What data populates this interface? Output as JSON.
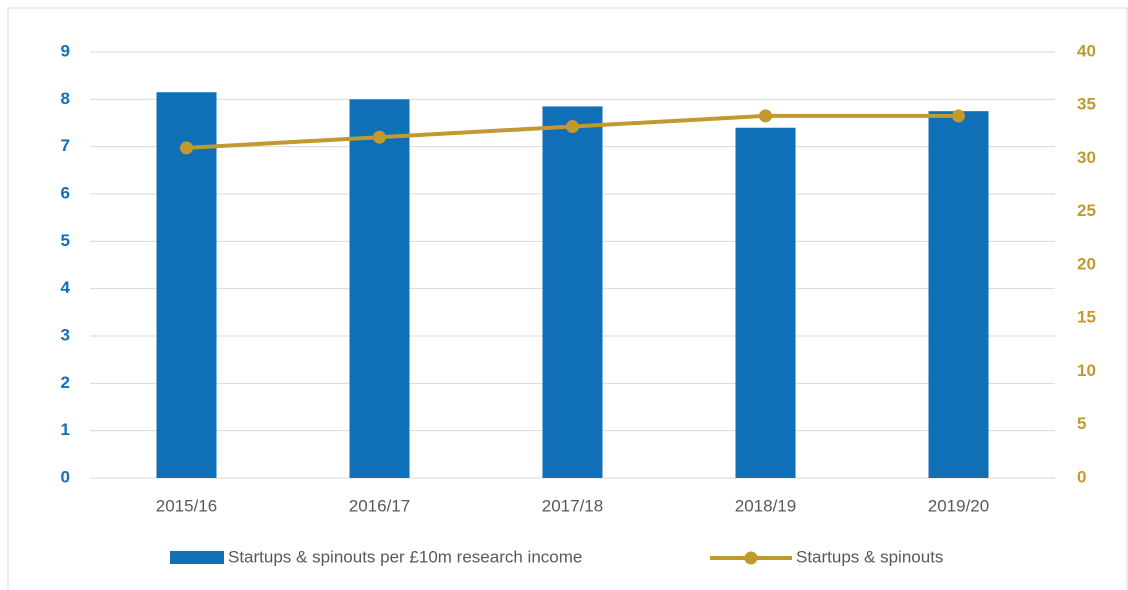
{
  "chart_data": {
    "type": "bar",
    "categories": [
      "2015/16",
      "2016/17",
      "2017/18",
      "2018/19",
      "2019/20"
    ],
    "series": [
      {
        "name": "Startups & spinouts per £10m research income",
        "type": "bar",
        "color": "#0f70b7",
        "axis": "y",
        "values": [
          8.15,
          8.0,
          7.85,
          7.4,
          7.75
        ]
      },
      {
        "name": "Startups & spinouts",
        "type": "line",
        "color": "#c09a2e",
        "axis": "y2",
        "values": [
          31,
          32,
          33,
          34,
          34
        ]
      }
    ],
    "ylim": [
      0,
      9
    ],
    "yticks": [
      0,
      1,
      2,
      3,
      4,
      5,
      6,
      7,
      8,
      9
    ],
    "y2lim": [
      0,
      40
    ],
    "y2ticks": [
      0,
      5,
      10,
      15,
      20,
      25,
      30,
      35,
      40
    ],
    "grid": true,
    "legend": "bottom"
  }
}
